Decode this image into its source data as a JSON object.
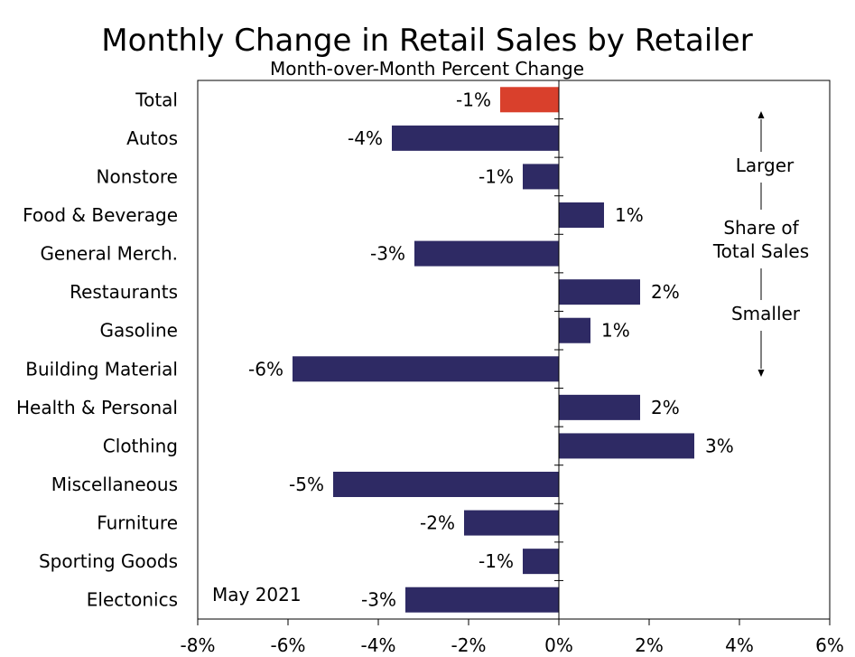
{
  "chart_data": {
    "type": "bar",
    "orientation": "horizontal",
    "title": "Monthly Change in Retail Sales by Retailer",
    "subtitle": "Month-over-Month Percent Change",
    "categories": [
      "Total",
      "Autos",
      "Nonstore",
      "Food & Beverage",
      "General Merch.",
      "Restaurants",
      "Gasoline",
      "Building Material",
      "Health & Personal",
      "Clothing",
      "Miscellaneous",
      "Furniture",
      "Sporting Goods",
      "Electonics"
    ],
    "values": [
      -1.3,
      -3.7,
      -0.8,
      1.0,
      -3.2,
      1.8,
      0.7,
      -5.9,
      1.8,
      3.0,
      -5.0,
      -2.1,
      -0.8,
      -3.4
    ],
    "data_labels": [
      "-1%",
      "-4%",
      "-1%",
      "1%",
      "-3%",
      "2%",
      "1%",
      "-6%",
      "2%",
      "3%",
      "-5%",
      "-2%",
      "-1%",
      "-3%"
    ],
    "highlight_index": 0,
    "xlim": [
      -8,
      6
    ],
    "xticks": [
      -8,
      -6,
      -4,
      -2,
      0,
      2,
      4,
      6
    ],
    "xtick_labels": [
      "-8%",
      "-6%",
      "-4%",
      "-2%",
      "0%",
      "2%",
      "4%",
      "6%"
    ],
    "date_note": "May 2021",
    "annotation": {
      "top": "Larger",
      "middle_line1": "Share of",
      "middle_line2": "Total Sales",
      "bottom": "Smaller"
    },
    "colors": {
      "bar": "#2e2a64",
      "highlight": "#d9402c"
    }
  }
}
